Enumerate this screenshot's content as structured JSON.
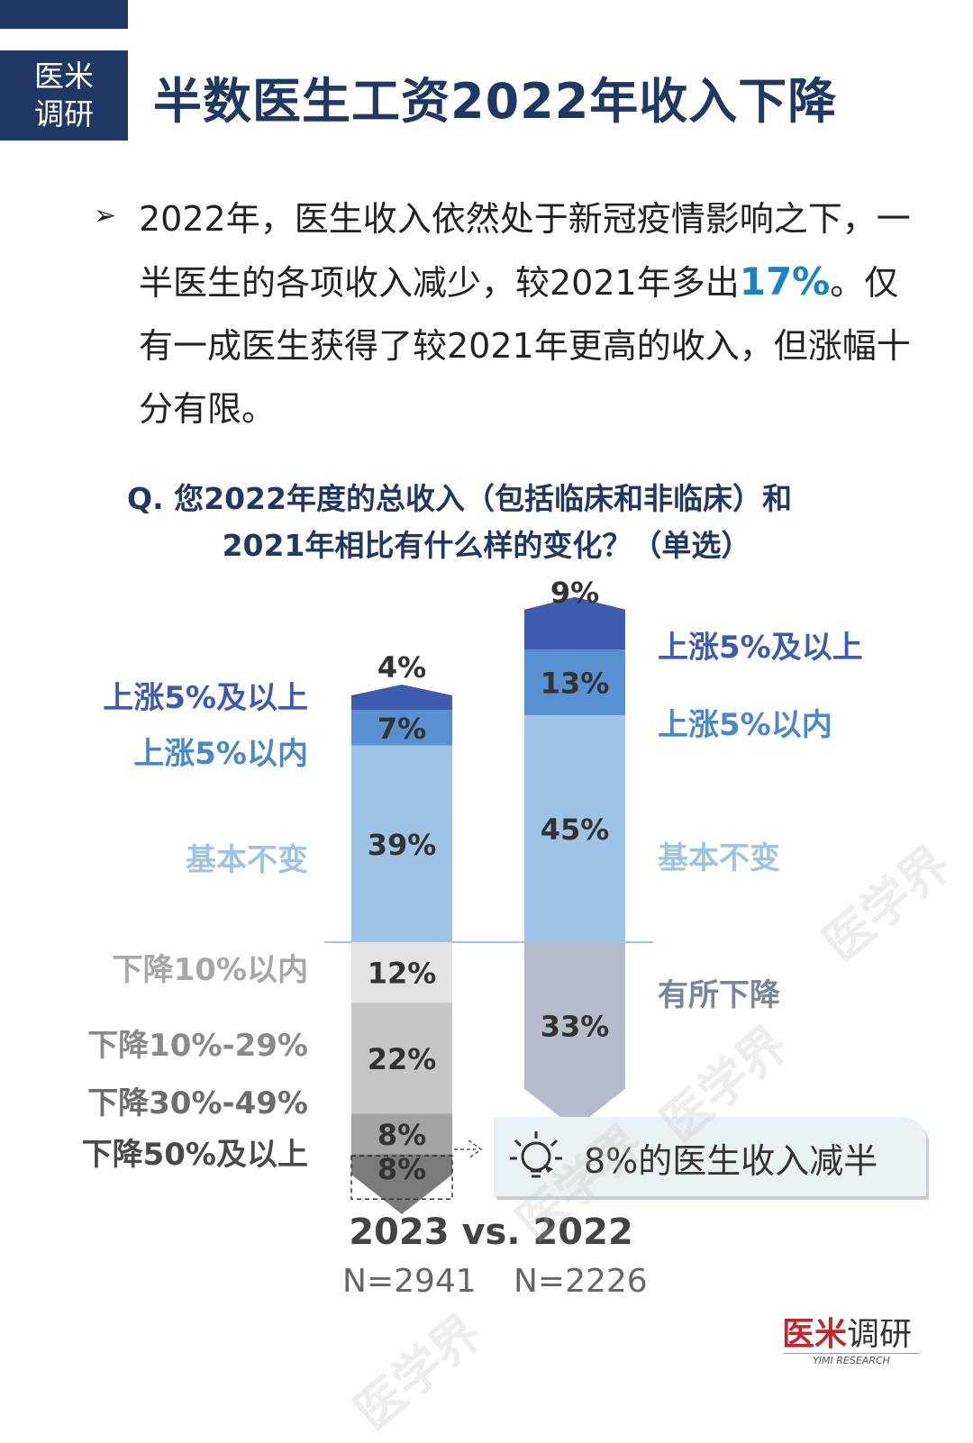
{
  "brand": {
    "line1": "医米",
    "line2": "调研"
  },
  "title": "半数医生工资2022年收入下降",
  "paragraph": {
    "part1": "2022年，医生收入依然处于新冠疫情影响之下，一半医生的各项收入减少，较2021年多出",
    "highlight": "17%",
    "part2": "。仅有一成医生获得了较2021年更高的收入，但涨幅十分有限。"
  },
  "question": {
    "line1": "Q. 您2022年度的总收入（包括临床和非临床）和",
    "line2": "2021年相比有什么样的变化？（单选）"
  },
  "chart_data": {
    "type": "bar",
    "stacked": true,
    "baseline_between": "基本不变 / 下降",
    "series": [
      {
        "name": "2023",
        "n": "N=2941",
        "segments": [
          {
            "label": "上涨5%及以上",
            "value": 4,
            "display": "4%",
            "color": "#3f5bad"
          },
          {
            "label": "上涨5%以内",
            "value": 7,
            "display": "7%",
            "color": "#5891d2"
          },
          {
            "label": "基本不变",
            "value": 39,
            "display": "39%",
            "color": "#9ec3e4"
          },
          {
            "label": "下降10%以内",
            "value": 12,
            "display": "12%",
            "color": "#e3e3e3"
          },
          {
            "label": "下降10%-29%",
            "value": 22,
            "display": "22%",
            "color": "#c6c6c6"
          },
          {
            "label": "下降30%-49%",
            "value": 8,
            "display": "8%",
            "color": "#a3a3a3"
          },
          {
            "label": "下降50%及以上",
            "value": 8,
            "display": "8%",
            "color": "#7b7b7b"
          }
        ]
      },
      {
        "name": "2022",
        "n": "N=2226",
        "segments": [
          {
            "label": "上涨5%及以上",
            "value": 9,
            "display": "9%",
            "color": "#3f5bad"
          },
          {
            "label": "上涨5%以内",
            "value": 13,
            "display": "13%",
            "color": "#5891d2"
          },
          {
            "label": "基本不变",
            "value": 45,
            "display": "45%",
            "color": "#9ec3e4"
          },
          {
            "label": "有所下降",
            "value": 33,
            "display": "33%",
            "color": "#b7bccd"
          }
        ]
      }
    ],
    "label_colors": {
      "up_big": "#3f5bad",
      "up_small": "#4a88c9",
      "same": "#9ec3e4",
      "down_left": "#8a8a8a",
      "down_right": "#7a8599"
    }
  },
  "callout": "8%的医生收入减半",
  "comparison": "2023  vs. 2022",
  "n_left": "N=2941",
  "n_right": "N=2226",
  "logo": {
    "main_red": "医米",
    "main_dark": "调研",
    "sub": "YIMI RESEARCH"
  },
  "watermark": "医学界"
}
